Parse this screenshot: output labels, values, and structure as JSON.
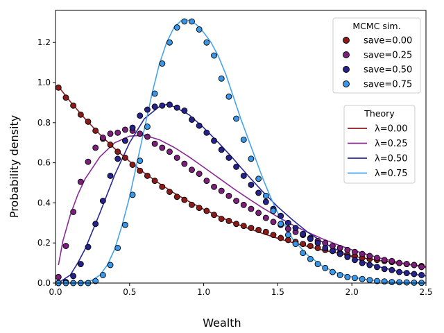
{
  "chart_data": {
    "type": "scatter",
    "xlabel": "Wealth",
    "ylabel": "Probability density",
    "xlim": [
      0,
      2.5
    ],
    "ylim": [
      0,
      1.36
    ],
    "xticks": [
      "0.0",
      "0.5",
      "1.0",
      "1.5",
      "2.0",
      "2.5"
    ],
    "yticks": [
      "0.0",
      "0.2",
      "0.4",
      "0.6",
      "0.8",
      "1.0",
      "1.2"
    ],
    "grid": false,
    "legend_markers": {
      "title": "MCMC sim.",
      "placement": "top-right",
      "entries": [
        "save=0.00",
        "save=0.25",
        "save=0.50",
        "save=0.75"
      ]
    },
    "legend_lines": {
      "title": "Theory",
      "placement": "right",
      "entries": [
        "λ=0.00",
        "λ=0.25",
        "λ=0.50",
        "λ=0.75"
      ]
    },
    "colors": {
      "save_0_00": "#8b1a1a",
      "save_0_25": "#7b1f7b",
      "save_0_50": "#25238a",
      "save_0_75": "#3a96e6",
      "line_0_00": "#8b1a1a",
      "line_0_25": "#8a2a95",
      "line_0_50": "#28289a",
      "line_0_75": "#46a3ee"
    },
    "series": [
      {
        "kind": "theory-line",
        "lambda": 0.0,
        "x": [
          0.02,
          0.1,
          0.2,
          0.3,
          0.4,
          0.5,
          0.6,
          0.7,
          0.8,
          0.9,
          1.0,
          1.1,
          1.2,
          1.3,
          1.4,
          1.5,
          1.6,
          1.7,
          1.8,
          1.9,
          2.0,
          2.1,
          2.2,
          2.3,
          2.4,
          2.5
        ],
        "y": [
          0.98,
          0.905,
          0.819,
          0.741,
          0.67,
          0.607,
          0.549,
          0.497,
          0.449,
          0.407,
          0.368,
          0.333,
          0.301,
          0.273,
          0.247,
          0.223,
          0.202,
          0.183,
          0.165,
          0.15,
          0.135,
          0.122,
          0.111,
          0.1,
          0.091,
          0.082
        ]
      },
      {
        "kind": "theory-line",
        "lambda": 0.25,
        "x": [
          0.02,
          0.05,
          0.1,
          0.15,
          0.2,
          0.3,
          0.4,
          0.5,
          0.6,
          0.7,
          0.8,
          0.9,
          1.0,
          1.1,
          1.2,
          1.3,
          1.4,
          1.5,
          1.6,
          1.7,
          1.8,
          1.9,
          2.0,
          2.1,
          2.2,
          2.3,
          2.4,
          2.5
        ],
        "y": [
          0.09,
          0.21,
          0.34,
          0.44,
          0.52,
          0.63,
          0.7,
          0.733,
          0.737,
          0.715,
          0.677,
          0.63,
          0.578,
          0.525,
          0.472,
          0.422,
          0.374,
          0.33,
          0.29,
          0.254,
          0.221,
          0.192,
          0.166,
          0.143,
          0.123,
          0.106,
          0.091,
          0.078
        ]
      },
      {
        "kind": "theory-line",
        "lambda": 0.5,
        "x": [
          0.02,
          0.1,
          0.15,
          0.2,
          0.3,
          0.4,
          0.5,
          0.6,
          0.7,
          0.75,
          0.8,
          0.9,
          1.0,
          1.1,
          1.2,
          1.3,
          1.4,
          1.5,
          1.6,
          1.7,
          1.8,
          1.9,
          2.0,
          2.1,
          2.2,
          2.3,
          2.4,
          2.5
        ],
        "y": [
          0.001,
          0.04,
          0.1,
          0.17,
          0.35,
          0.54,
          0.7,
          0.82,
          0.88,
          0.891,
          0.88,
          0.84,
          0.775,
          0.7,
          0.62,
          0.535,
          0.455,
          0.38,
          0.315,
          0.255,
          0.205,
          0.165,
          0.13,
          0.1,
          0.078,
          0.06,
          0.046,
          0.035
        ]
      },
      {
        "kind": "theory-line",
        "lambda": 0.75,
        "x": [
          0.0,
          0.1,
          0.2,
          0.25,
          0.3,
          0.35,
          0.4,
          0.45,
          0.5,
          0.55,
          0.6,
          0.65,
          0.7,
          0.75,
          0.8,
          0.85,
          0.9,
          0.95,
          1.0,
          1.05,
          1.1,
          1.15,
          1.2,
          1.25,
          1.3,
          1.35,
          1.4,
          1.45,
          1.5,
          1.6,
          1.7,
          1.8,
          1.9,
          2.0,
          2.1,
          2.2,
          2.3,
          2.4,
          2.5
        ],
        "y": [
          0.0,
          0.0,
          0.005,
          0.015,
          0.04,
          0.09,
          0.17,
          0.29,
          0.43,
          0.6,
          0.77,
          0.94,
          1.09,
          1.2,
          1.275,
          1.31,
          1.31,
          1.29,
          1.25,
          1.2,
          1.13,
          1.04,
          0.93,
          0.82,
          0.72,
          0.62,
          0.52,
          0.43,
          0.35,
          0.22,
          0.14,
          0.085,
          0.05,
          0.03,
          0.017,
          0.01,
          0.005,
          0.003,
          0.001
        ]
      },
      {
        "kind": "mcmc-markers",
        "name": "save=0.00",
        "x": [
          0.02,
          0.07,
          0.12,
          0.17,
          0.22,
          0.27,
          0.32,
          0.37,
          0.42,
          0.47,
          0.52,
          0.57,
          0.62,
          0.67,
          0.72,
          0.77,
          0.82,
          0.87,
          0.92,
          0.97,
          1.02,
          1.07,
          1.12,
          1.17,
          1.22,
          1.27,
          1.32,
          1.37,
          1.42,
          1.47,
          1.52,
          1.57,
          1.62,
          1.67,
          1.72,
          1.77,
          1.82,
          1.87,
          1.92,
          1.97,
          2.02,
          2.07,
          2.12,
          2.17,
          2.22,
          2.27,
          2.32,
          2.37,
          2.42,
          2.47
        ],
        "y": [
          0.975,
          0.925,
          0.885,
          0.84,
          0.805,
          0.76,
          0.72,
          0.69,
          0.655,
          0.625,
          0.59,
          0.56,
          0.535,
          0.51,
          0.48,
          0.455,
          0.43,
          0.415,
          0.39,
          0.375,
          0.36,
          0.34,
          0.32,
          0.31,
          0.295,
          0.285,
          0.275,
          0.265,
          0.255,
          0.24,
          0.225,
          0.215,
          0.205,
          0.195,
          0.185,
          0.175,
          0.165,
          0.16,
          0.15,
          0.14,
          0.135,
          0.125,
          0.12,
          0.115,
          0.11,
          0.105,
          0.1,
          0.095,
          0.09,
          0.085
        ]
      },
      {
        "kind": "mcmc-markers",
        "name": "save=0.25",
        "x": [
          0.02,
          0.07,
          0.12,
          0.17,
          0.22,
          0.27,
          0.32,
          0.37,
          0.42,
          0.47,
          0.52,
          0.57,
          0.62,
          0.67,
          0.72,
          0.77,
          0.82,
          0.87,
          0.92,
          0.97,
          1.02,
          1.07,
          1.12,
          1.17,
          1.22,
          1.27,
          1.32,
          1.37,
          1.42,
          1.47,
          1.52,
          1.57,
          1.62,
          1.67,
          1.72,
          1.77,
          1.82,
          1.87,
          1.92,
          1.97,
          2.02,
          2.07,
          2.12,
          2.17,
          2.22,
          2.27,
          2.32,
          2.37,
          2.42,
          2.47
        ],
        "y": [
          0.03,
          0.185,
          0.355,
          0.505,
          0.605,
          0.675,
          0.725,
          0.745,
          0.75,
          0.765,
          0.76,
          0.745,
          0.73,
          0.695,
          0.675,
          0.655,
          0.625,
          0.595,
          0.565,
          0.545,
          0.51,
          0.48,
          0.46,
          0.435,
          0.41,
          0.39,
          0.37,
          0.35,
          0.325,
          0.305,
          0.29,
          0.27,
          0.255,
          0.24,
          0.225,
          0.21,
          0.2,
          0.185,
          0.175,
          0.165,
          0.155,
          0.145,
          0.135,
          0.125,
          0.115,
          0.11,
          0.1,
          0.095,
          0.09,
          0.08
        ]
      },
      {
        "kind": "mcmc-markers",
        "name": "save=0.50",
        "x": [
          0.02,
          0.07,
          0.12,
          0.17,
          0.22,
          0.27,
          0.32,
          0.37,
          0.42,
          0.47,
          0.52,
          0.57,
          0.62,
          0.67,
          0.72,
          0.77,
          0.82,
          0.87,
          0.92,
          0.97,
          1.02,
          1.07,
          1.12,
          1.17,
          1.22,
          1.27,
          1.32,
          1.37,
          1.42,
          1.47,
          1.52,
          1.57,
          1.62,
          1.67,
          1.72,
          1.77,
          1.82,
          1.87,
          1.92,
          1.97,
          2.02,
          2.07,
          2.12,
          2.17,
          2.22,
          2.27,
          2.32,
          2.37,
          2.42,
          2.47
        ],
        "y": [
          0.0,
          0.005,
          0.035,
          0.095,
          0.18,
          0.295,
          0.41,
          0.535,
          0.62,
          0.71,
          0.775,
          0.835,
          0.865,
          0.88,
          0.885,
          0.89,
          0.875,
          0.86,
          0.815,
          0.785,
          0.75,
          0.71,
          0.665,
          0.625,
          0.58,
          0.535,
          0.49,
          0.45,
          0.405,
          0.37,
          0.335,
          0.3,
          0.275,
          0.245,
          0.22,
          0.2,
          0.175,
          0.16,
          0.145,
          0.13,
          0.115,
          0.1,
          0.09,
          0.08,
          0.07,
          0.065,
          0.055,
          0.05,
          0.045,
          0.04
        ]
      },
      {
        "kind": "mcmc-markers",
        "name": "save=0.75",
        "x": [
          0.02,
          0.07,
          0.12,
          0.17,
          0.22,
          0.27,
          0.32,
          0.37,
          0.42,
          0.47,
          0.52,
          0.57,
          0.62,
          0.67,
          0.72,
          0.77,
          0.82,
          0.87,
          0.92,
          0.97,
          1.02,
          1.07,
          1.12,
          1.17,
          1.22,
          1.27,
          1.32,
          1.37,
          1.42,
          1.47,
          1.52,
          1.57,
          1.62,
          1.67,
          1.72,
          1.77,
          1.82,
          1.87,
          1.92,
          1.97,
          2.02,
          2.07,
          2.12,
          2.17,
          2.22,
          2.27,
          2.32,
          2.37,
          2.42,
          2.47
        ],
        "y": [
          0.0,
          0.0,
          0.0,
          0.0,
          0.0,
          0.01,
          0.04,
          0.09,
          0.175,
          0.29,
          0.44,
          0.61,
          0.78,
          0.945,
          1.095,
          1.2,
          1.275,
          1.305,
          1.305,
          1.265,
          1.2,
          1.135,
          1.02,
          0.93,
          0.82,
          0.715,
          0.62,
          0.52,
          0.435,
          0.36,
          0.295,
          0.24,
          0.195,
          0.15,
          0.12,
          0.095,
          0.075,
          0.055,
          0.04,
          0.03,
          0.025,
          0.02,
          0.015,
          0.01,
          0.008,
          0.005,
          0.004,
          0.003,
          0.002,
          0.001
        ]
      }
    ]
  }
}
